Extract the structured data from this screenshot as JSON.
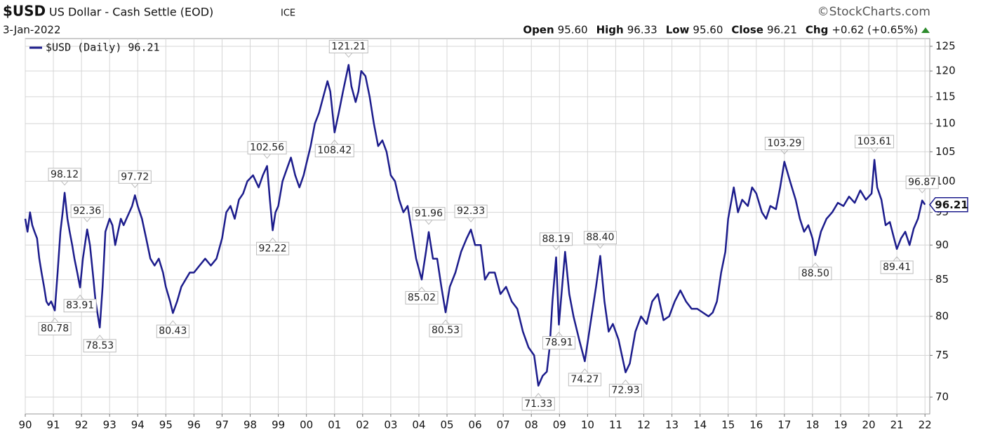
{
  "chart_data": {
    "type": "line",
    "symbol": "$USD",
    "title": "US Dollar - Cash Settle (EOD)",
    "exchange": "ICE",
    "source": "©StockCharts.com",
    "date": "3-Jan-2022",
    "ohlc": [
      {
        "name": "Open",
        "value": "95.60"
      },
      {
        "name": "High",
        "value": "96.33"
      },
      {
        "name": "Low",
        "value": "95.60"
      },
      {
        "name": "Close",
        "value": "96.21"
      },
      {
        "name": "Chg",
        "value": "+0.62 (+0.65%)"
      }
    ],
    "log_scale": true,
    "grid": true,
    "last_value": 96.21,
    "xlim": [
      1990,
      2022.17
    ],
    "ylim": [
      68.08,
      126.6
    ],
    "yticks": [
      70,
      75,
      80,
      85,
      90,
      95,
      100,
      105,
      110,
      115,
      120,
      125
    ],
    "xticks": [
      {
        "value": 1990,
        "label": "90"
      },
      {
        "value": 1991,
        "label": "91"
      },
      {
        "value": 1992,
        "label": "92"
      },
      {
        "value": 1993,
        "label": "93"
      },
      {
        "value": 1994,
        "label": "94"
      },
      {
        "value": 1995,
        "label": "95"
      },
      {
        "value": 1996,
        "label": "96"
      },
      {
        "value": 1997,
        "label": "97"
      },
      {
        "value": 1998,
        "label": "98"
      },
      {
        "value": 1999,
        "label": "99"
      },
      {
        "value": 2000,
        "label": "00"
      },
      {
        "value": 2001,
        "label": "01"
      },
      {
        "value": 2002,
        "label": "02"
      },
      {
        "value": 2003,
        "label": "03"
      },
      {
        "value": 2004,
        "label": "04"
      },
      {
        "value": 2005,
        "label": "05"
      },
      {
        "value": 2006,
        "label": "06"
      },
      {
        "value": 2007,
        "label": "07"
      },
      {
        "value": 2008,
        "label": "08"
      },
      {
        "value": 2009,
        "label": "09"
      },
      {
        "value": 2010,
        "label": "10"
      },
      {
        "value": 2011,
        "label": "11"
      },
      {
        "value": 2012,
        "label": "12"
      },
      {
        "value": 2013,
        "label": "13"
      },
      {
        "value": 2014,
        "label": "14"
      },
      {
        "value": 2015,
        "label": "15"
      },
      {
        "value": 2016,
        "label": "16"
      },
      {
        "value": 2017,
        "label": "17"
      },
      {
        "value": 2018,
        "label": "18"
      },
      {
        "value": 2019,
        "label": "19"
      },
      {
        "value": 2020,
        "label": "20"
      },
      {
        "value": 2021,
        "label": "21"
      },
      {
        "value": 2022,
        "label": "22"
      }
    ],
    "series": [
      {
        "name": "$USD (Daily) 96.21",
        "color": "#1c1c8c",
        "x": [
          1990.0,
          1990.08,
          1990.17,
          1990.25,
          1990.33,
          1990.42,
          1990.5,
          1990.58,
          1990.67,
          1990.75,
          1990.83,
          1990.92,
          1991.05,
          1991.15,
          1991.25,
          1991.33,
          1991.4,
          1991.5,
          1991.58,
          1991.67,
          1991.75,
          1991.85,
          1991.95,
          1992.05,
          1992.2,
          1992.3,
          1992.4,
          1992.5,
          1992.65,
          1992.75,
          1992.85,
          1993.0,
          1993.1,
          1993.2,
          1993.3,
          1993.4,
          1993.5,
          1993.6,
          1993.7,
          1993.8,
          1993.9,
          1994.0,
          1994.15,
          1994.3,
          1994.45,
          1994.6,
          1994.75,
          1994.9,
          1995.0,
          1995.15,
          1995.25,
          1995.4,
          1995.55,
          1995.7,
          1995.85,
          1996.0,
          1996.2,
          1996.4,
          1996.6,
          1996.8,
          1997.0,
          1997.15,
          1997.3,
          1997.45,
          1997.6,
          1997.75,
          1997.9,
          1998.1,
          1998.3,
          1998.45,
          1998.6,
          1998.7,
          1998.8,
          1998.9,
          1999.0,
          1999.15,
          1999.3,
          1999.45,
          1999.6,
          1999.75,
          1999.9,
          2000.0,
          2000.15,
          2000.3,
          2000.45,
          2000.6,
          2000.75,
          2000.85,
          2001.0,
          2001.15,
          2001.3,
          2001.5,
          2001.6,
          2001.75,
          2001.85,
          2001.95,
          2002.1,
          2002.25,
          2002.4,
          2002.55,
          2002.7,
          2002.85,
          2003.0,
          2003.15,
          2003.3,
          2003.45,
          2003.6,
          2003.75,
          2003.9,
          2004.1,
          2004.25,
          2004.35,
          2004.5,
          2004.65,
          2004.8,
          2004.95,
          2005.1,
          2005.3,
          2005.5,
          2005.7,
          2005.85,
          2006.0,
          2006.2,
          2006.35,
          2006.5,
          2006.7,
          2006.9,
          2007.1,
          2007.3,
          2007.5,
          2007.7,
          2007.9,
          2008.1,
          2008.25,
          2008.4,
          2008.55,
          2008.65,
          2008.75,
          2008.88,
          2008.98,
          2009.2,
          2009.35,
          2009.5,
          2009.7,
          2009.9,
          2010.1,
          2010.3,
          2010.45,
          2010.6,
          2010.75,
          2010.9,
          2011.1,
          2011.35,
          2011.5,
          2011.7,
          2011.9,
          2012.1,
          2012.3,
          2012.5,
          2012.7,
          2012.9,
          2013.1,
          2013.3,
          2013.5,
          2013.7,
          2013.9,
          2014.1,
          2014.3,
          2014.45,
          2014.6,
          2014.75,
          2014.9,
          2015.0,
          2015.2,
          2015.35,
          2015.5,
          2015.7,
          2015.85,
          2016.0,
          2016.2,
          2016.35,
          2016.5,
          2016.7,
          2016.85,
          2017.0,
          2017.2,
          2017.4,
          2017.55,
          2017.7,
          2017.85,
          2018.0,
          2018.1,
          2018.3,
          2018.5,
          2018.7,
          2018.9,
          2019.1,
          2019.3,
          2019.5,
          2019.7,
          2019.9,
          2020.1,
          2020.2,
          2020.3,
          2020.45,
          2020.6,
          2020.75,
          2020.9,
          2021.0,
          2021.15,
          2021.3,
          2021.45,
          2021.6,
          2021.75,
          2021.9,
          2022.0
        ],
        "values": [
          94,
          92,
          95,
          93,
          92,
          91,
          88,
          86,
          84,
          82,
          81.5,
          82,
          80.78,
          86,
          92,
          95,
          98.12,
          94,
          92,
          90,
          88,
          86,
          83.91,
          88,
          92.36,
          90,
          86,
          82,
          78.53,
          84,
          92,
          94,
          93,
          90,
          92,
          94,
          93,
          94,
          95,
          96,
          97.72,
          96,
          94,
          91,
          88,
          87,
          88,
          86,
          84,
          82,
          80.43,
          82,
          84,
          85,
          86,
          86,
          87,
          88,
          87,
          88,
          91,
          95,
          96,
          94,
          97,
          98,
          100,
          101,
          99,
          101,
          102.56,
          97,
          92.22,
          95,
          96,
          100,
          102,
          104,
          101,
          99,
          101,
          103,
          106,
          110,
          112,
          115,
          118,
          116,
          108.42,
          112,
          116,
          121.21,
          117,
          114,
          116,
          120,
          119,
          115,
          110,
          106,
          107,
          105,
          101,
          100,
          97,
          95,
          96,
          92,
          88,
          85.02,
          89,
          91.96,
          88,
          88,
          84,
          80.53,
          84,
          86,
          89,
          91,
          92.33,
          90,
          90,
          85,
          86,
          86,
          83,
          84,
          82,
          81,
          78,
          76,
          75,
          71.33,
          72.5,
          73,
          76,
          82,
          88.19,
          78.91,
          89,
          83,
          80,
          77,
          74.27,
          79,
          84,
          88.4,
          82,
          78,
          79,
          77,
          72.93,
          74,
          78,
          80,
          79,
          82,
          83,
          79.5,
          80,
          82,
          83.5,
          82,
          81,
          81,
          80.5,
          80,
          80.5,
          82,
          86,
          89,
          94,
          99,
          95,
          97,
          96,
          99,
          98,
          95,
          94,
          96,
          95.5,
          99,
          103.29,
          100,
          97,
          94,
          92,
          93,
          91,
          88.5,
          92,
          94,
          95,
          96.5,
          96,
          97.5,
          96.5,
          98.5,
          97,
          98,
          103.61,
          99,
          97,
          93,
          93.5,
          91,
          89.41,
          91,
          92,
          90,
          92.5,
          94,
          96.87,
          96.21
        ]
      }
    ],
    "annotations": [
      {
        "x": 1991.05,
        "value": 80.78,
        "label": "80.78"
      },
      {
        "x": 1991.4,
        "value": 98.12,
        "label": "98.12"
      },
      {
        "x": 1991.95,
        "value": 83.91,
        "label": "83.91"
      },
      {
        "x": 1992.2,
        "value": 92.36,
        "label": "92.36"
      },
      {
        "x": 1992.65,
        "value": 78.53,
        "label": "78.53"
      },
      {
        "x": 1993.9,
        "value": 97.72,
        "label": "97.72"
      },
      {
        "x": 1995.25,
        "value": 80.43,
        "label": "80.43"
      },
      {
        "x": 1998.6,
        "value": 102.56,
        "label": "102.56"
      },
      {
        "x": 1998.8,
        "value": 92.22,
        "label": "92.22"
      },
      {
        "x": 2001.0,
        "value": 108.42,
        "label": "108.42"
      },
      {
        "x": 2001.5,
        "value": 121.21,
        "label": "121.21"
      },
      {
        "x": 2004.1,
        "value": 85.02,
        "label": "85.02"
      },
      {
        "x": 2004.35,
        "value": 91.96,
        "label": "91.96"
      },
      {
        "x": 2004.95,
        "value": 80.53,
        "label": "80.53"
      },
      {
        "x": 2005.85,
        "value": 92.33,
        "label": "92.33"
      },
      {
        "x": 2008.25,
        "value": 71.33,
        "label": "71.33"
      },
      {
        "x": 2008.88,
        "value": 88.19,
        "label": "88.19"
      },
      {
        "x": 2008.98,
        "value": 78.91,
        "label": "78.91"
      },
      {
        "x": 2009.9,
        "value": 74.27,
        "label": "74.27"
      },
      {
        "x": 2010.45,
        "value": 88.4,
        "label": "88.40"
      },
      {
        "x": 2011.35,
        "value": 72.93,
        "label": "72.93"
      },
      {
        "x": 2017.0,
        "value": 103.29,
        "label": "103.29"
      },
      {
        "x": 2018.1,
        "value": 88.5,
        "label": "88.50"
      },
      {
        "x": 2020.2,
        "value": 103.61,
        "label": "103.61"
      },
      {
        "x": 2021.0,
        "value": 89.41,
        "label": "89.41"
      },
      {
        "x": 2021.9,
        "value": 96.87,
        "label": "96.87"
      }
    ]
  }
}
